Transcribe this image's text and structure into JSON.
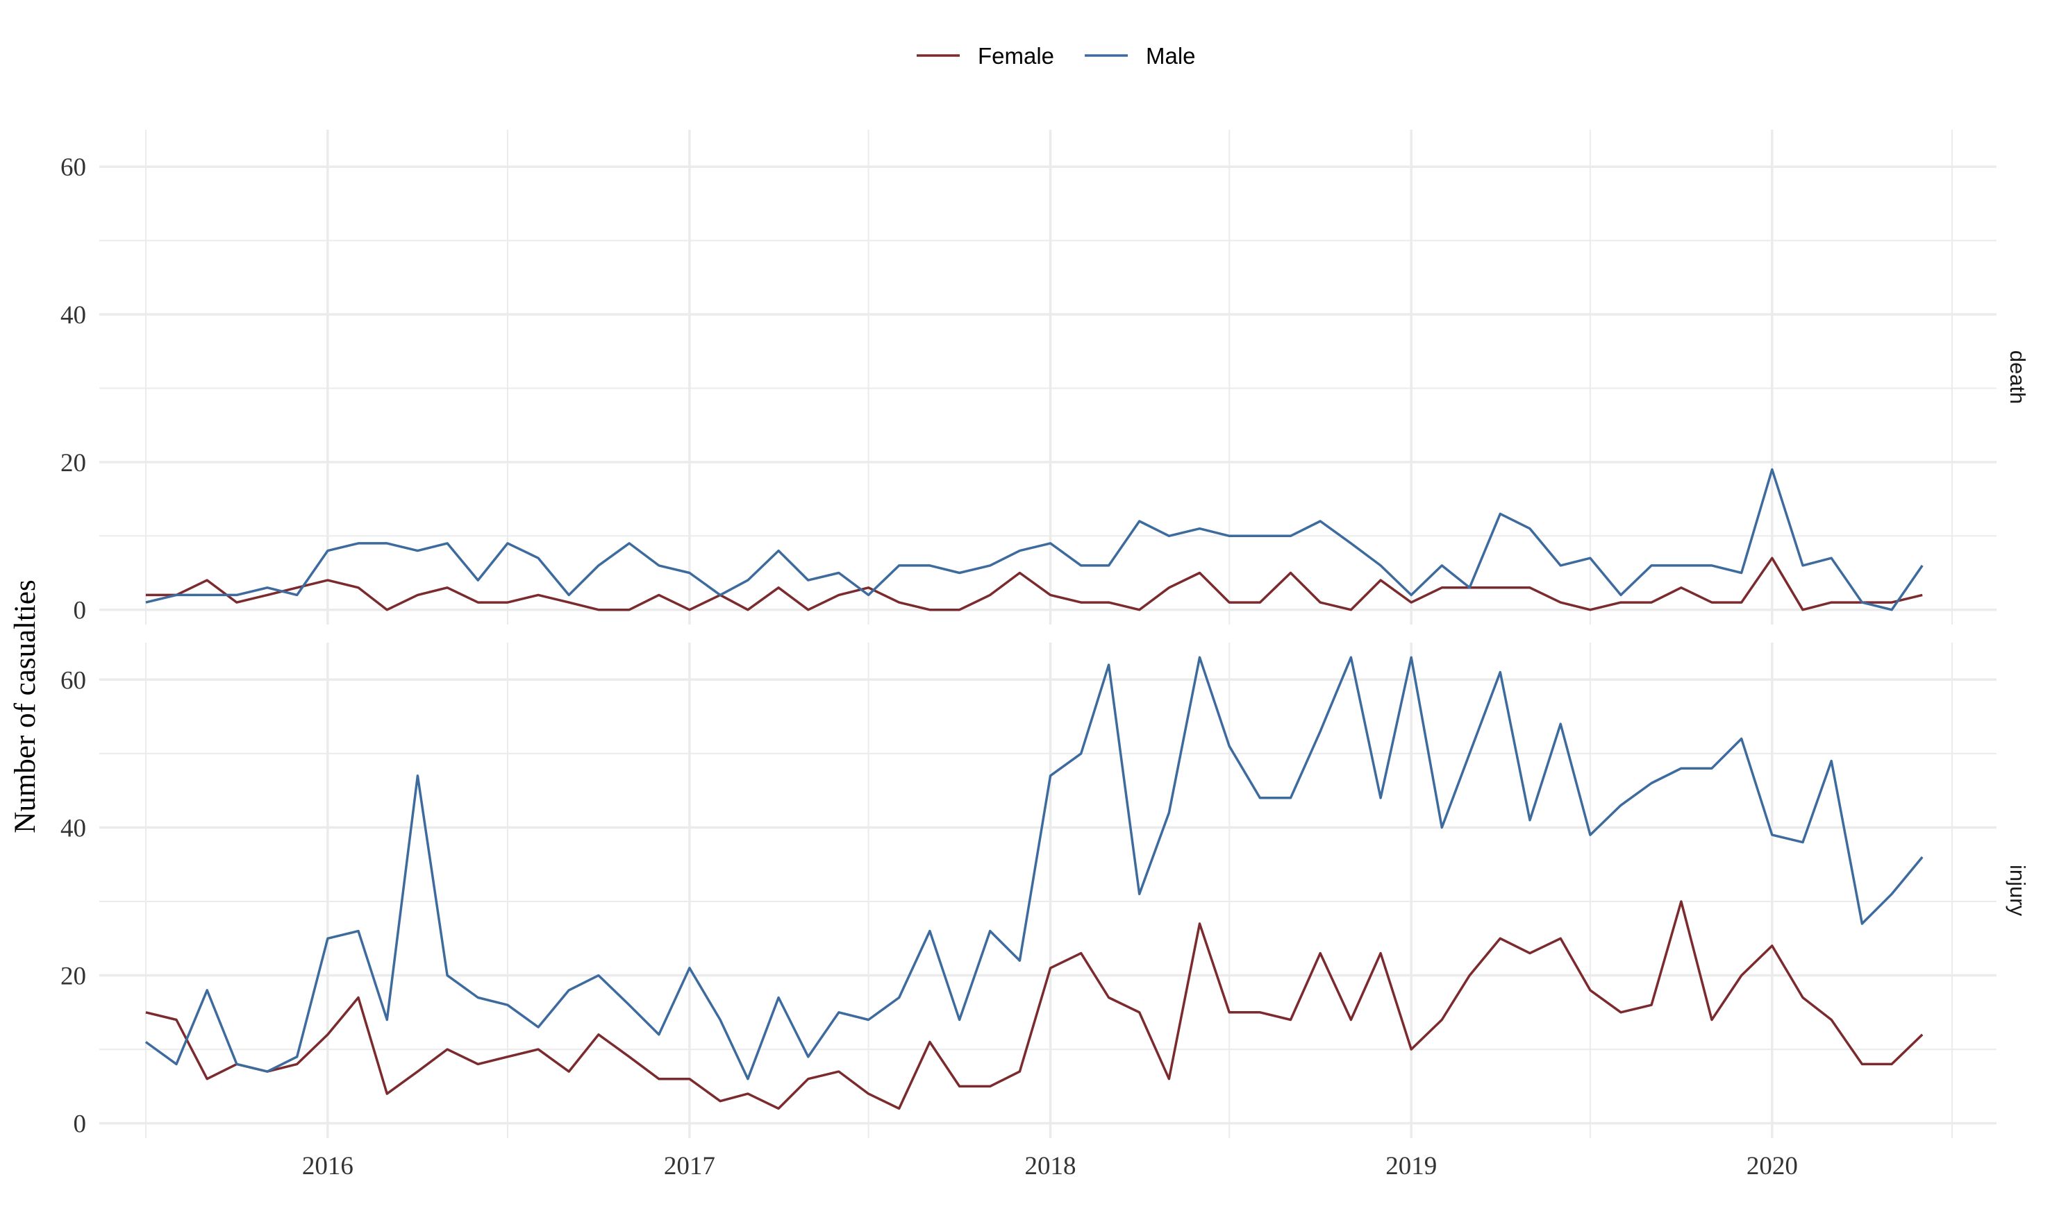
{
  "chart_data": {
    "type": "line",
    "ylabel": "Number of casualties",
    "xlabel": "",
    "legend": {
      "position": "top",
      "entries": [
        "Female",
        "Male"
      ]
    },
    "colors": {
      "Female": "#7b2a2e",
      "Male": "#3e6b9e",
      "grid": "#ebebeb"
    },
    "grid": true,
    "x_ticks": [
      "2016",
      "2017",
      "2018",
      "2019",
      "2020"
    ],
    "x_range": [
      "2015-05-15",
      "2020-08-15"
    ],
    "y_ticks": [
      0,
      20,
      40,
      60
    ],
    "ylim": [
      -2,
      65
    ],
    "months": [
      "2015-07",
      "2015-08",
      "2015-09",
      "2015-10",
      "2015-11",
      "2015-12",
      "2016-01",
      "2016-02",
      "2016-03",
      "2016-04",
      "2016-05",
      "2016-06",
      "2016-07",
      "2016-08",
      "2016-09",
      "2016-10",
      "2016-11",
      "2016-12",
      "2017-01",
      "2017-02",
      "2017-03",
      "2017-04",
      "2017-05",
      "2017-06",
      "2017-07",
      "2017-08",
      "2017-09",
      "2017-10",
      "2017-11",
      "2017-12",
      "2018-01",
      "2018-02",
      "2018-03",
      "2018-04",
      "2018-05",
      "2018-06",
      "2018-07",
      "2018-08",
      "2018-09",
      "2018-10",
      "2018-11",
      "2018-12",
      "2019-01",
      "2019-02",
      "2019-03",
      "2019-04",
      "2019-05",
      "2019-06",
      "2019-07",
      "2019-08",
      "2019-09",
      "2019-10",
      "2019-11",
      "2019-12",
      "2020-01",
      "2020-02",
      "2020-03",
      "2020-04",
      "2020-05",
      "2020-06"
    ],
    "panels": [
      {
        "strip": "death",
        "series": [
          {
            "name": "Female",
            "values": [
              2,
              2,
              4,
              1,
              2,
              3,
              4,
              3,
              0,
              2,
              3,
              1,
              1,
              2,
              1,
              0,
              0,
              2,
              0,
              2,
              0,
              3,
              0,
              2,
              3,
              1,
              0,
              0,
              2,
              5,
              2,
              1,
              1,
              0,
              3,
              5,
              1,
              1,
              5,
              1,
              0,
              4,
              1,
              3,
              3,
              3,
              3,
              1,
              0,
              1,
              1,
              3,
              1,
              1,
              7,
              0,
              1,
              1,
              1,
              2
            ]
          },
          {
            "name": "Male",
            "values": [
              1,
              2,
              2,
              2,
              3,
              2,
              8,
              9,
              9,
              8,
              9,
              4,
              9,
              7,
              2,
              6,
              9,
              6,
              5,
              2,
              4,
              8,
              4,
              5,
              2,
              6,
              6,
              5,
              6,
              8,
              9,
              6,
              6,
              12,
              10,
              11,
              10,
              10,
              10,
              12,
              9,
              6,
              2,
              6,
              3,
              13,
              11,
              6,
              7,
              2,
              6,
              6,
              6,
              5,
              19,
              6,
              7,
              1,
              0,
              6
            ]
          }
        ]
      },
      {
        "strip": "injury",
        "series": [
          {
            "name": "Female",
            "values": [
              15,
              14,
              6,
              8,
              7,
              8,
              12,
              17,
              4,
              7,
              10,
              8,
              9,
              10,
              7,
              12,
              9,
              6,
              6,
              3,
              4,
              2,
              6,
              7,
              4,
              2,
              11,
              5,
              5,
              7,
              21,
              23,
              17,
              15,
              6,
              27,
              15,
              15,
              14,
              23,
              14,
              23,
              10,
              14,
              20,
              25,
              23,
              25,
              18,
              15,
              16,
              30,
              14,
              20,
              24,
              17,
              14,
              8,
              8,
              12
            ]
          },
          {
            "name": "Male",
            "values": [
              11,
              8,
              18,
              8,
              7,
              9,
              25,
              26,
              14,
              47,
              20,
              17,
              16,
              13,
              18,
              20,
              16,
              12,
              21,
              14,
              6,
              17,
              9,
              15,
              14,
              17,
              26,
              14,
              26,
              22,
              47,
              50,
              62,
              31,
              42,
              63,
              51,
              44,
              44,
              53,
              63,
              44,
              63,
              40,
              50,
              61,
              41,
              54,
              39,
              43,
              46,
              48,
              48,
              52,
              39,
              38,
              49,
              27,
              31,
              36
            ]
          }
        ]
      }
    ]
  }
}
